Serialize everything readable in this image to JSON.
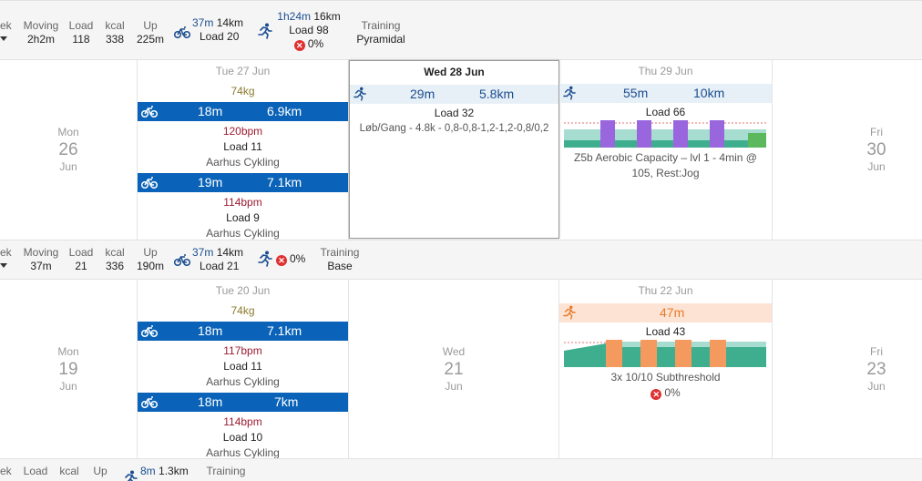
{
  "summary1": {
    "week_label": "ek",
    "moving": {
      "label": "Moving",
      "value": "2h2m"
    },
    "load": {
      "label": "Load",
      "value": "118"
    },
    "kcal": {
      "label": "kcal",
      "value": "338"
    },
    "up": {
      "label": "Up",
      "value": "225m"
    },
    "bike": {
      "time": "37m",
      "dist": "14km",
      "load": "Load 20"
    },
    "run": {
      "time": "1h24m",
      "dist": "16km",
      "load": "Load 98",
      "pct": "0%"
    },
    "training": {
      "label": "Training",
      "value": "Pyramidal"
    }
  },
  "week1": {
    "mon": {
      "name": "Mon",
      "date": "26",
      "month": "Jun"
    },
    "tue": {
      "head": "Tue 27 Jun",
      "weight": "74kg",
      "acts": [
        {
          "time": "18m",
          "dist": "6.9km",
          "bpm": "120bpm",
          "load": "Load 11",
          "desc": "Aarhus Cykling"
        },
        {
          "time": "19m",
          "dist": "7.1km",
          "bpm": "114bpm",
          "load": "Load 9",
          "desc": "Aarhus Cykling"
        }
      ]
    },
    "wed": {
      "head": "Wed 28 Jun",
      "time": "29m",
      "dist": "5.8km",
      "load": "Load 32",
      "desc": "Løb/Gang - 4.8k - 0,8-0,8-1,2-1,2-0,8/0,2"
    },
    "thu": {
      "head": "Thu 29 Jun",
      "time": "55m",
      "dist": "10km",
      "load": "Load 66",
      "desc1": "Z5b Aerobic Capacity – lvl 1 - 4min @",
      "desc2": "105, Rest:Jog"
    },
    "fri": {
      "name": "Fri",
      "date": "30",
      "month": "Jun"
    }
  },
  "summary2": {
    "week_label": "ek",
    "moving": {
      "label": "Moving",
      "value": "37m"
    },
    "load": {
      "label": "Load",
      "value": "21"
    },
    "kcal": {
      "label": "kcal",
      "value": "336"
    },
    "up": {
      "label": "Up",
      "value": "190m"
    },
    "bike": {
      "time": "37m",
      "dist": "14km",
      "load": "Load 21"
    },
    "run": {
      "pct": "0%"
    },
    "training": {
      "label": "Training",
      "value": "Base"
    }
  },
  "week2": {
    "mon": {
      "name": "Mon",
      "date": "19",
      "month": "Jun"
    },
    "tue": {
      "head": "Tue 20 Jun",
      "weight": "74kg",
      "acts": [
        {
          "time": "18m",
          "dist": "7.1km",
          "bpm": "117bpm",
          "load": "Load 11",
          "desc": "Aarhus Cykling"
        },
        {
          "time": "18m",
          "dist": "7km",
          "bpm": "114bpm",
          "load": "Load 10",
          "desc": "Aarhus Cykling"
        }
      ]
    },
    "wed": {
      "name": "Wed",
      "date": "21",
      "month": "Jun"
    },
    "thu": {
      "head": "Thu 22 Jun",
      "time": "47m",
      "load": "Load 43",
      "desc": "3x 10/10 Subthreshold",
      "pct": "0%"
    },
    "fri": {
      "name": "Fri",
      "date": "23",
      "month": "Jun"
    }
  },
  "summary3": {
    "week_label": "ek",
    "load_label": "Load",
    "kcal_label": "kcal",
    "up_label": "Up",
    "run": {
      "time": "8m",
      "dist": "1.3km"
    },
    "training_label": "Training"
  },
  "colors": {
    "bike_bar": "#0a63b8",
    "plan_bar": "#e8f0f7",
    "run_orange": "#e77a2a",
    "bpm": "#9b1b30",
    "weight": "#8a7a2b",
    "z_purple": "#9966dd",
    "z_orange": "#f59a5e",
    "z_teal": "#3fae8f",
    "z_green": "#5cb85c"
  },
  "icons": {
    "bike": "bike-icon",
    "run": "run-icon",
    "fail": "fail-x-icon"
  }
}
